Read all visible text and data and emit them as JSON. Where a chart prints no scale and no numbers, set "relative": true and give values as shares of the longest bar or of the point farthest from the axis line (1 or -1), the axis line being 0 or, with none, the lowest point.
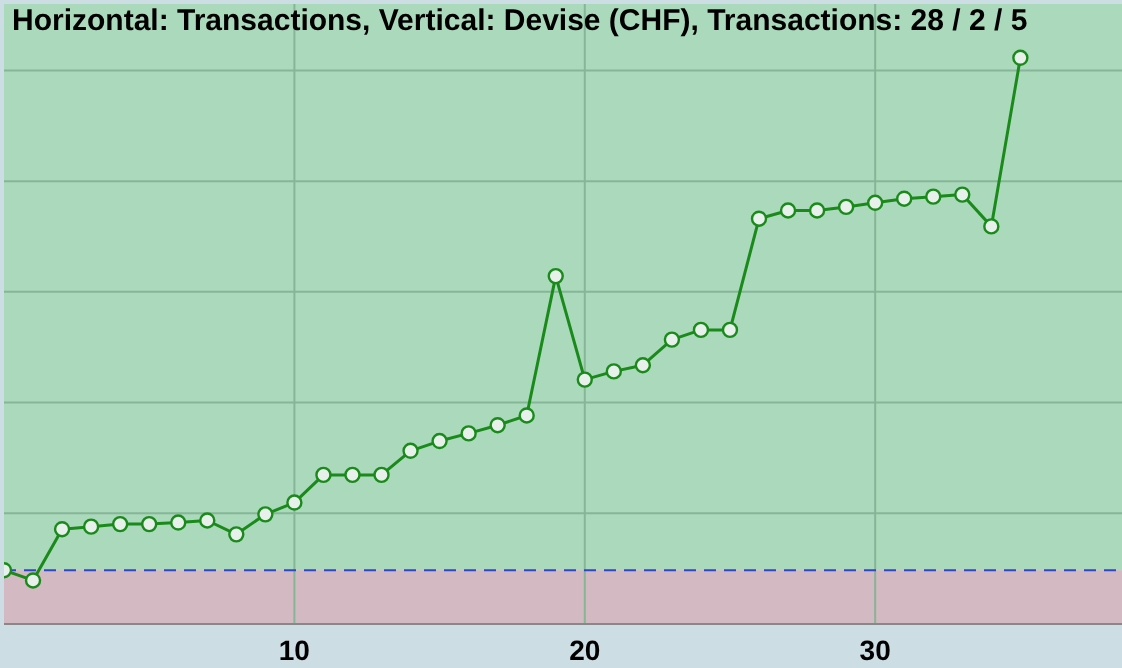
{
  "chart_data": {
    "type": "line",
    "title": "Horizontal: Transactions, Vertical: Devise (CHF), Transactions: 28 / 2 / 5",
    "relative": true,
    "x": [
      0,
      1,
      2,
      3,
      4,
      5,
      6,
      7,
      8,
      9,
      10,
      11,
      12,
      13,
      14,
      15,
      16,
      17,
      18,
      19,
      20,
      21,
      22,
      23,
      24,
      25,
      26,
      27,
      28,
      29,
      30,
      31,
      32,
      33,
      34,
      35
    ],
    "series": [
      {
        "color": "#1a8a1a",
        "values": [
          0,
          -0.02,
          0.08,
          0.085,
          0.09,
          0.09,
          0.093,
          0.097,
          0.07,
          0.109,
          0.132,
          0.186,
          0.186,
          0.186,
          0.233,
          0.252,
          0.267,
          0.283,
          0.302,
          0.574,
          0.372,
          0.388,
          0.4,
          0.45,
          0.469,
          0.469,
          0.686,
          0.702,
          0.702,
          0.709,
          0.717,
          0.725,
          0.729,
          0.733,
          0.671,
          1
        ]
      }
    ],
    "xlim": [
      0,
      38.5
    ],
    "xticks": [
      10,
      20,
      30
    ],
    "tick_labels": "x",
    "grid": true,
    "marker": "circle",
    "line_style": "solid",
    "bands": [
      {
        "axis": "y",
        "from": 0,
        "to": 1.105,
        "color": "#aad9bb"
      },
      {
        "axis": "y",
        "from": -0.105,
        "to": 0,
        "color": "#d3b9c1"
      }
    ],
    "ref_lines": [
      {
        "axis": "y",
        "value": 0,
        "color": "#3344cc",
        "line_style": "dashed"
      }
    ]
  }
}
